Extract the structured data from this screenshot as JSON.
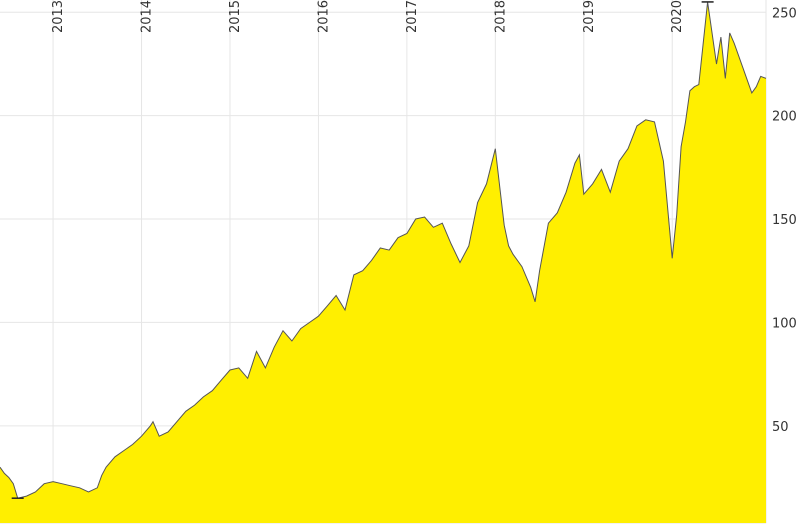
{
  "chart_data": {
    "type": "area",
    "title": "",
    "xlabel": "",
    "ylabel": "",
    "x_ticks": [
      "2013",
      "2014",
      "2015",
      "2016",
      "2017",
      "2018",
      "2019",
      "2020"
    ],
    "y_ticks": [
      50,
      100,
      150,
      200,
      250
    ],
    "xlim": [
      2012.4,
      2021.06
    ],
    "ylim": [
      3,
      254
    ],
    "grid": true,
    "fill_color": "#ffef00",
    "line_color": "#555555",
    "series": [
      {
        "x": [
          2012.4,
          2012.45,
          2012.5,
          2012.55,
          2012.6,
          2012.7,
          2012.8,
          2012.9,
          2013.0,
          2013.1,
          2013.2,
          2013.3,
          2013.4,
          2013.5,
          2013.55,
          2013.6,
          2013.7,
          2013.8,
          2013.9,
          2014.0,
          2014.1,
          2014.13,
          2014.2,
          2014.3,
          2014.4,
          2014.5,
          2014.6,
          2014.7,
          2014.8,
          2014.9,
          2015.0,
          2015.1,
          2015.2,
          2015.3,
          2015.4,
          2015.5,
          2015.6,
          2015.7,
          2015.8,
          2015.9,
          2016.0,
          2016.1,
          2016.2,
          2016.3,
          2016.4,
          2016.5,
          2016.6,
          2016.7,
          2016.8,
          2016.9,
          2017.0,
          2017.1,
          2017.2,
          2017.3,
          2017.4,
          2017.5,
          2017.6,
          2017.7,
          2017.8,
          2017.9,
          2018.0,
          2018.1,
          2018.15,
          2018.2,
          2018.3,
          2018.4,
          2018.45,
          2018.5,
          2018.6,
          2018.7,
          2018.8,
          2018.9,
          2018.95,
          2019.0,
          2019.1,
          2019.2,
          2019.3,
          2019.4,
          2019.5,
          2019.6,
          2019.7,
          2019.8,
          2019.9,
          2020.0,
          2020.05,
          2020.1,
          2020.15,
          2020.2,
          2020.25,
          2020.3,
          2020.4,
          2020.5,
          2020.55,
          2020.6,
          2020.65,
          2020.7,
          2020.8,
          2020.9,
          2020.95,
          2021.0,
          2021.06
        ],
        "y": [
          30,
          27,
          25,
          22,
          15,
          16,
          18,
          22,
          23,
          22,
          21,
          20,
          18,
          20,
          26,
          30,
          35,
          38,
          41,
          45,
          50,
          52,
          45,
          47,
          52,
          57,
          60,
          64,
          67,
          72,
          77,
          78,
          73,
          86,
          78,
          88,
          96,
          91,
          97,
          100,
          103,
          108,
          113,
          106,
          123,
          125,
          130,
          136,
          135,
          141,
          143,
          150,
          151,
          146,
          148,
          138,
          129,
          137,
          158,
          167,
          184,
          147,
          137,
          133,
          127,
          117,
          110,
          125,
          148,
          153,
          163,
          177,
          181,
          162,
          167,
          174,
          163,
          178,
          184,
          195,
          198,
          197,
          178,
          131,
          152,
          185,
          197,
          212,
          214,
          215,
          255,
          225,
          238,
          218,
          240,
          235,
          223,
          211,
          214,
          219,
          218
        ]
      }
    ]
  }
}
